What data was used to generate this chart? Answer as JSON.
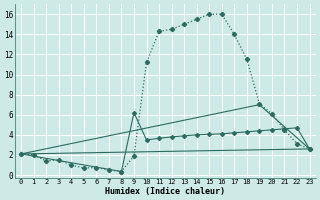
{
  "xlabel": "Humidex (Indice chaleur)",
  "background_color": "#ceeae6",
  "grid_color": "#ffffff",
  "line_color": "#2d6b61",
  "xlim": [
    -0.5,
    23.5
  ],
  "ylim": [
    -0.3,
    17
  ],
  "xticks": [
    0,
    1,
    2,
    3,
    4,
    5,
    6,
    7,
    8,
    9,
    10,
    11,
    12,
    13,
    14,
    15,
    16,
    17,
    18,
    19,
    20,
    21,
    22,
    23
  ],
  "yticks": [
    0,
    2,
    4,
    6,
    8,
    10,
    12,
    14,
    16
  ],
  "series1_x": [
    0,
    1,
    2,
    3,
    4,
    5,
    6,
    7,
    8,
    9,
    10,
    11,
    12,
    13,
    14,
    15,
    16,
    17,
    18,
    19,
    20,
    21,
    22,
    23
  ],
  "series1_y": [
    2.1,
    2.0,
    1.4,
    1.5,
    1.0,
    0.7,
    0.75,
    0.5,
    0.35,
    1.9,
    11.2,
    14.3,
    14.5,
    15.0,
    15.5,
    16.0,
    16.0,
    14.0,
    11.5,
    7.1,
    6.1,
    4.5,
    3.1,
    2.6
  ],
  "series2_x": [
    0,
    8,
    9,
    10,
    11,
    12,
    13,
    14,
    15,
    16,
    17,
    18,
    19,
    20,
    21,
    22,
    23
  ],
  "series2_y": [
    2.1,
    0.35,
    6.2,
    3.5,
    3.65,
    3.8,
    3.9,
    4.0,
    4.05,
    4.1,
    4.2,
    4.3,
    4.4,
    4.5,
    4.6,
    4.7,
    2.6
  ],
  "series3_x": [
    0,
    23
  ],
  "series3_y": [
    2.1,
    2.6
  ],
  "series4_x": [
    0,
    19,
    23
  ],
  "series4_y": [
    2.1,
    7.0,
    2.6
  ]
}
